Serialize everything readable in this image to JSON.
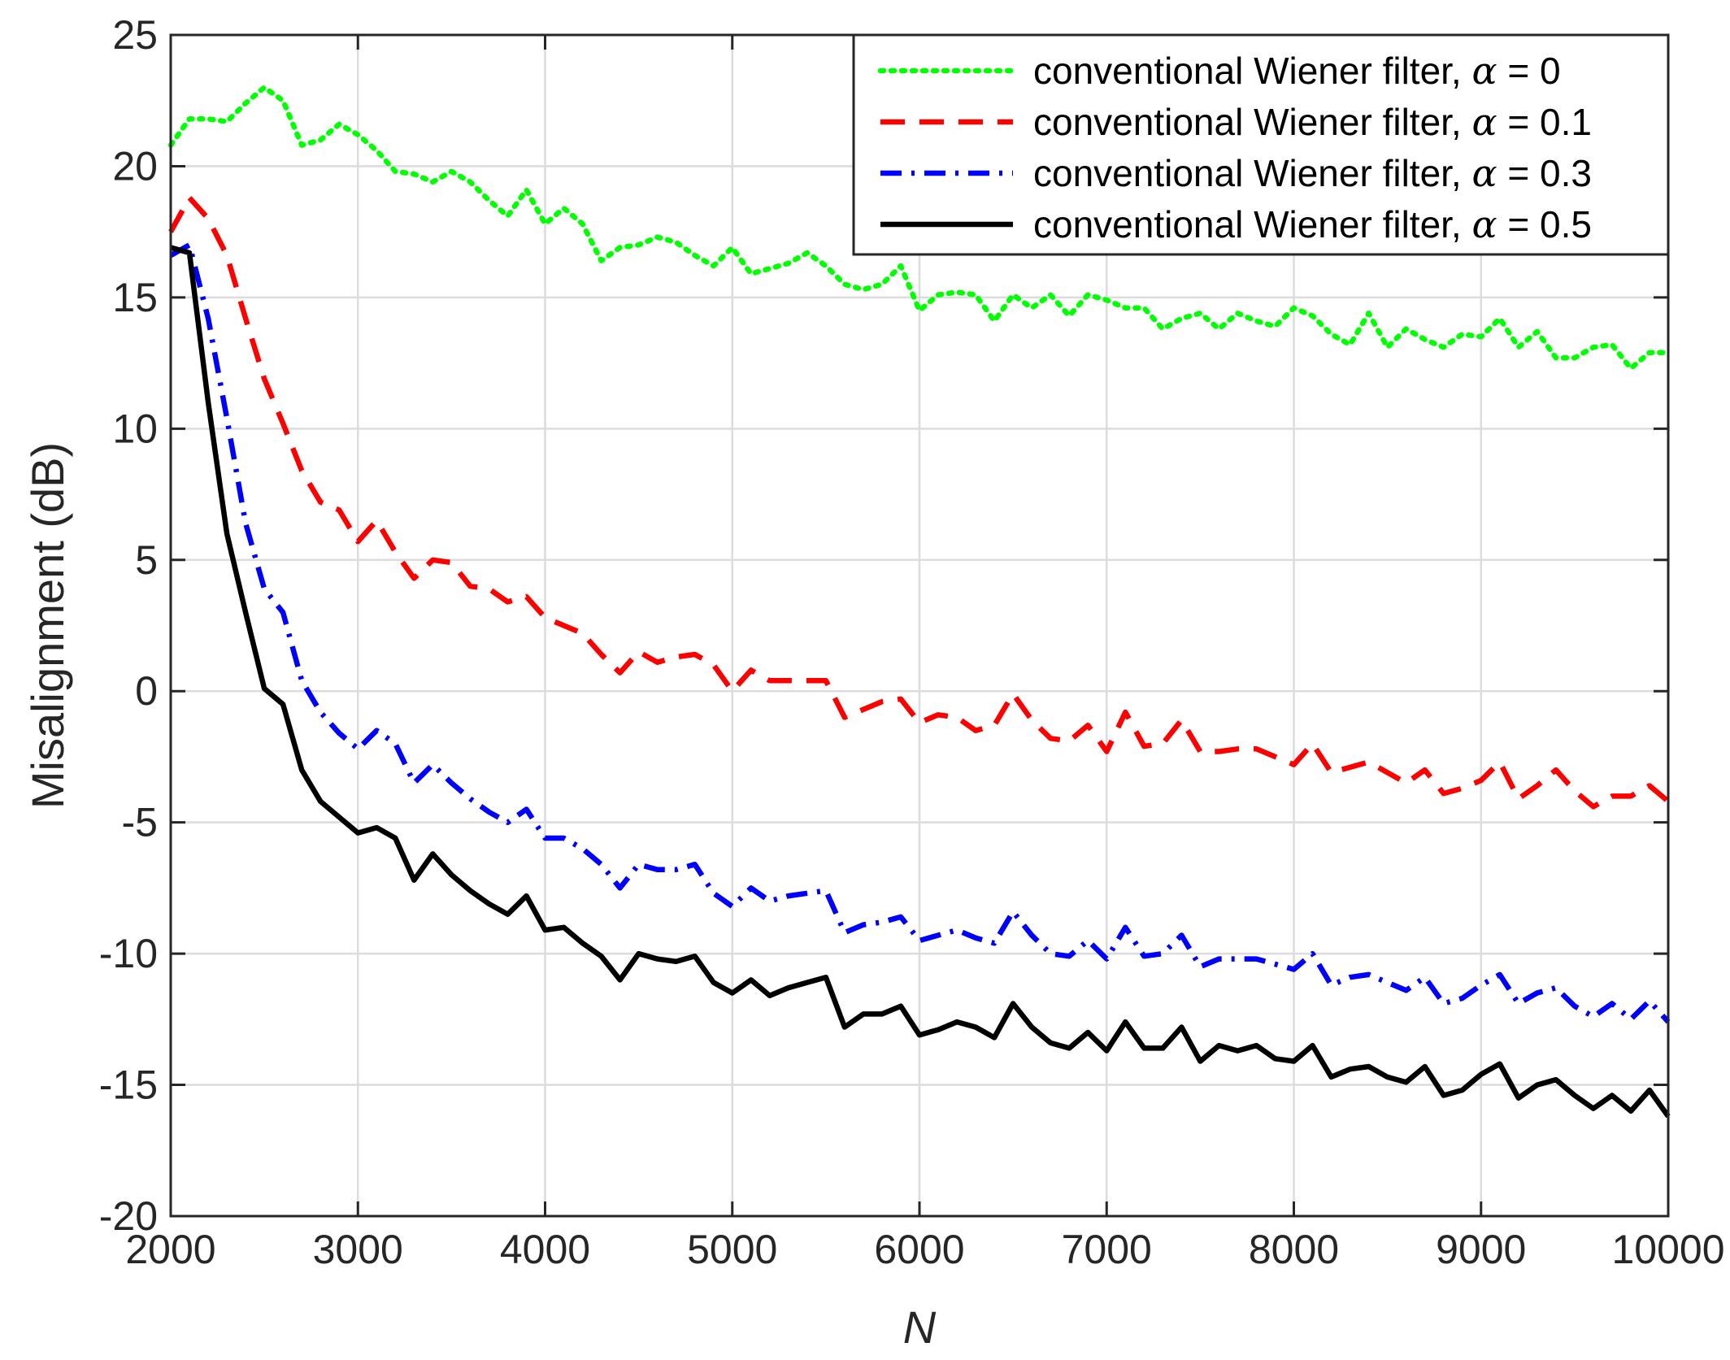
{
  "chart_data": {
    "type": "line",
    "xlabel": "N",
    "ylabel": "Misalignment (dB)",
    "xlim": [
      2000,
      10000
    ],
    "ylim": [
      -20,
      25
    ],
    "xticks": [
      "2000",
      "3000",
      "4000",
      "5000",
      "6000",
      "7000",
      "8000",
      "9000",
      "10000"
    ],
    "yticks": [
      "25",
      "20",
      "15",
      "10",
      "5",
      "0",
      "-5",
      "-10",
      "-15",
      "-20"
    ],
    "grid": true,
    "legend_position": "top-right",
    "x": [
      2000,
      2100,
      2200,
      2300,
      2400,
      2500,
      2600,
      2700,
      2800,
      2900,
      3000,
      3100,
      3200,
      3300,
      3400,
      3500,
      3600,
      3700,
      3800,
      3900,
      4000,
      4100,
      4200,
      4300,
      4400,
      4500,
      4600,
      4700,
      4800,
      4900,
      5000,
      5100,
      5200,
      5300,
      5400,
      5500,
      5600,
      5700,
      5800,
      5900,
      6000,
      6100,
      6200,
      6300,
      6400,
      6500,
      6600,
      6700,
      6800,
      6900,
      7000,
      7100,
      7200,
      7300,
      7400,
      7500,
      7600,
      7700,
      7800,
      7900,
      8000,
      8100,
      8200,
      8300,
      8400,
      8500,
      8600,
      8700,
      8800,
      8900,
      9000,
      9100,
      9200,
      9300,
      9400,
      9500,
      9600,
      9700,
      9800,
      9900,
      10000
    ],
    "series": [
      {
        "name": "conventional Wiener filter",
        "alpha_symbol": "α",
        "alpha_value": "= 0",
        "color": "#00ff00",
        "style": "dotted",
        "values": [
          20.8,
          21.8,
          21.8,
          21.7,
          22.4,
          23.0,
          22.5,
          20.8,
          21.0,
          21.6,
          21.2,
          20.6,
          19.8,
          19.7,
          19.4,
          19.8,
          19.4,
          18.7,
          18.1,
          19.1,
          17.8,
          18.4,
          17.8,
          16.4,
          16.9,
          17.0,
          17.3,
          17.1,
          16.6,
          16.2,
          16.9,
          15.9,
          16.1,
          16.3,
          16.7,
          16.2,
          15.5,
          15.3,
          15.5,
          16.2,
          14.5,
          15.1,
          15.2,
          15.1,
          14.1,
          15.1,
          14.6,
          15.1,
          14.3,
          15.1,
          14.9,
          14.6,
          14.6,
          13.8,
          14.2,
          14.4,
          13.8,
          14.4,
          14.1,
          13.9,
          14.6,
          14.3,
          13.6,
          13.2,
          14.4,
          13.1,
          13.8,
          13.4,
          13.1,
          13.6,
          13.5,
          14.2,
          13.1,
          13.7,
          12.7,
          12.7,
          13.1,
          13.2,
          12.3,
          12.9,
          12.9
        ]
      },
      {
        "name": "conventional Wiener filter",
        "alpha_symbol": "α",
        "alpha_value": "= 0.1",
        "color": "#ff0000",
        "style": "dashed",
        "values": [
          17.5,
          18.8,
          18.0,
          16.6,
          14.2,
          11.9,
          10.2,
          8.4,
          7.2,
          6.9,
          5.7,
          6.5,
          5.3,
          4.3,
          5.0,
          4.9,
          4.0,
          3.9,
          3.4,
          3.6,
          2.8,
          2.5,
          2.2,
          1.4,
          0.7,
          1.5,
          1.1,
          1.3,
          1.4,
          1.0,
          0.0,
          0.8,
          0.4,
          0.4,
          0.4,
          0.4,
          -1.0,
          -0.7,
          -0.4,
          -0.3,
          -1.2,
          -0.9,
          -1.0,
          -1.5,
          -1.3,
          -0.1,
          -1.1,
          -1.8,
          -1.9,
          -1.3,
          -2.3,
          -0.8,
          -2.1,
          -2.0,
          -1.1,
          -2.3,
          -2.3,
          -2.2,
          -2.2,
          -2.5,
          -2.8,
          -2.0,
          -3.1,
          -2.9,
          -2.7,
          -3.1,
          -3.5,
          -3.0,
          -3.9,
          -3.7,
          -3.4,
          -2.7,
          -4.1,
          -3.6,
          -3.0,
          -3.8,
          -4.4,
          -4.0,
          -4.0,
          -3.6,
          -4.2
        ]
      },
      {
        "name": "conventional Wiener filter",
        "alpha_symbol": "α",
        "alpha_value": "= 0.3",
        "color": "#0000ff",
        "style": "dashdot",
        "values": [
          16.6,
          17.0,
          14.2,
          10.4,
          6.4,
          3.9,
          3.0,
          0.4,
          -0.8,
          -1.6,
          -2.2,
          -1.5,
          -2.0,
          -3.5,
          -2.8,
          -3.5,
          -4.1,
          -4.6,
          -5.0,
          -4.5,
          -5.6,
          -5.6,
          -6.0,
          -6.6,
          -7.5,
          -6.6,
          -6.8,
          -6.8,
          -6.6,
          -7.7,
          -8.2,
          -7.5,
          -8.0,
          -7.8,
          -7.7,
          -7.6,
          -9.2,
          -8.9,
          -8.8,
          -8.6,
          -9.5,
          -9.3,
          -9.1,
          -9.4,
          -9.6,
          -8.4,
          -9.3,
          -10.0,
          -10.1,
          -9.5,
          -10.2,
          -9.0,
          -10.1,
          -10.0,
          -9.3,
          -10.5,
          -10.2,
          -10.2,
          -10.2,
          -10.4,
          -10.6,
          -10.0,
          -11.2,
          -10.9,
          -10.8,
          -11.1,
          -11.4,
          -10.9,
          -11.9,
          -11.7,
          -11.2,
          -10.8,
          -11.9,
          -11.5,
          -11.3,
          -12.0,
          -12.4,
          -11.9,
          -12.5,
          -11.8,
          -12.6
        ]
      },
      {
        "name": "conventional Wiener filter",
        "alpha_symbol": "α",
        "alpha_value": "= 0.5",
        "color": "#000000",
        "style": "solid",
        "values": [
          16.9,
          16.7,
          11.0,
          6.0,
          3.0,
          0.1,
          -0.5,
          -3.0,
          -4.2,
          -4.8,
          -5.4,
          -5.2,
          -5.6,
          -7.2,
          -6.2,
          -7.0,
          -7.6,
          -8.1,
          -8.5,
          -7.8,
          -9.1,
          -9.0,
          -9.6,
          -10.1,
          -11.0,
          -10.0,
          -10.2,
          -10.3,
          -10.1,
          -11.1,
          -11.5,
          -11.0,
          -11.6,
          -11.3,
          -11.1,
          -10.9,
          -12.8,
          -12.3,
          -12.3,
          -12.0,
          -13.1,
          -12.9,
          -12.6,
          -12.8,
          -13.2,
          -11.9,
          -12.8,
          -13.4,
          -13.6,
          -13.0,
          -13.7,
          -12.6,
          -13.6,
          -13.6,
          -12.8,
          -14.1,
          -13.5,
          -13.7,
          -13.5,
          -14.0,
          -14.1,
          -13.5,
          -14.7,
          -14.4,
          -14.3,
          -14.7,
          -14.9,
          -14.3,
          -15.4,
          -15.2,
          -14.6,
          -14.2,
          -15.5,
          -15.0,
          -14.8,
          -15.4,
          -15.9,
          -15.4,
          -16.0,
          -15.2,
          -16.2
        ]
      }
    ]
  }
}
